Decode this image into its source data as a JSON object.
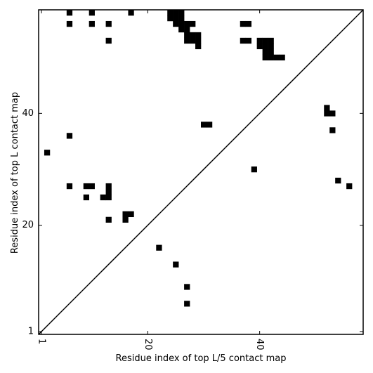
{
  "chart_data": {
    "type": "heatmap",
    "title": "",
    "xlabel": "Residue index of top L/5 contact map",
    "ylabel": "Residue index of top L contact map",
    "xlim": [
      0.5,
      58.5
    ],
    "ylim": [
      0.5,
      58.5
    ],
    "x_ticks": [
      1,
      20,
      40
    ],
    "y_ticks": [
      1,
      20,
      40
    ],
    "x_tick_labels": [
      "1",
      "20",
      "40"
    ],
    "y_tick_labels": [
      "1",
      "20",
      "40"
    ],
    "x_tick_rotation": "vertical",
    "diagonal": true,
    "grid": false,
    "legend": "none",
    "colors": {
      "contact": "#000000",
      "background": "#ffffff",
      "diagonal": "#000000"
    },
    "upper_contacts": [
      [
        6,
        58
      ],
      [
        10,
        58
      ],
      [
        17,
        58
      ],
      [
        24,
        58
      ],
      [
        25,
        58
      ],
      [
        26,
        58
      ],
      [
        24,
        57
      ],
      [
        25,
        57
      ],
      [
        26,
        57
      ],
      [
        6,
        56
      ],
      [
        10,
        56
      ],
      [
        13,
        56
      ],
      [
        25,
        56
      ],
      [
        26,
        56
      ],
      [
        27,
        56
      ],
      [
        28,
        56
      ],
      [
        37,
        56
      ],
      [
        38,
        56
      ],
      [
        26,
        55
      ],
      [
        27,
        55
      ],
      [
        27,
        54
      ],
      [
        28,
        54
      ],
      [
        29,
        54
      ],
      [
        13,
        53
      ],
      [
        27,
        53
      ],
      [
        28,
        53
      ],
      [
        29,
        53
      ],
      [
        37,
        53
      ],
      [
        38,
        53
      ],
      [
        40,
        53
      ],
      [
        41,
        53
      ],
      [
        42,
        53
      ],
      [
        29,
        52
      ],
      [
        40,
        52
      ],
      [
        41,
        52
      ],
      [
        42,
        52
      ],
      [
        41,
        51
      ],
      [
        42,
        51
      ],
      [
        41,
        50
      ],
      [
        42,
        50
      ],
      [
        43,
        50
      ],
      [
        44,
        50
      ],
      [
        52,
        41
      ],
      [
        52,
        40
      ],
      [
        53,
        40
      ],
      [
        30,
        38
      ],
      [
        31,
        38
      ],
      [
        53,
        37
      ],
      [
        6,
        36
      ],
      [
        2,
        33
      ],
      [
        39,
        30
      ],
      [
        54,
        28
      ],
      [
        6,
        27
      ],
      [
        9,
        27
      ],
      [
        10,
        27
      ],
      [
        13,
        27
      ],
      [
        13,
        26
      ],
      [
        56,
        27
      ],
      [
        9,
        25
      ],
      [
        12,
        25
      ],
      [
        13,
        25
      ],
      [
        16,
        22
      ],
      [
        17,
        22
      ],
      [
        13,
        21
      ],
      [
        16,
        21
      ]
    ],
    "lower_contacts": [
      [
        22,
        16
      ],
      [
        25,
        13
      ],
      [
        27,
        9
      ],
      [
        27,
        6
      ]
    ]
  }
}
